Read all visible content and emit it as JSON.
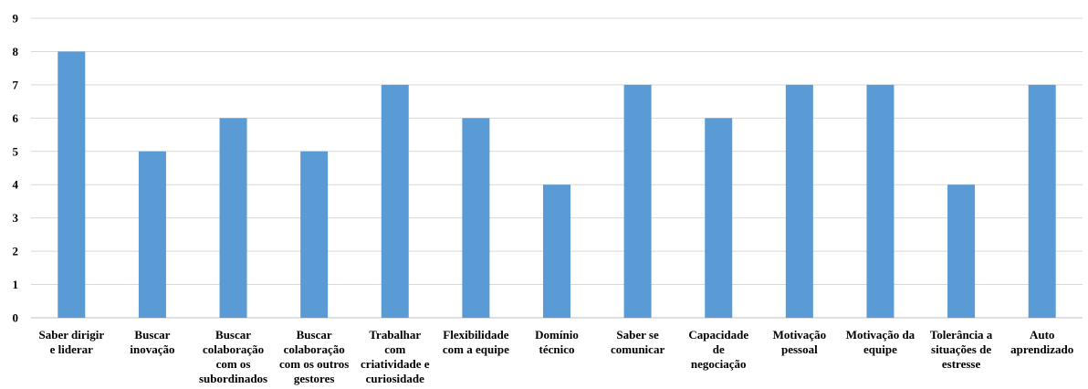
{
  "chart_data": {
    "type": "bar",
    "title": "",
    "xlabel": "",
    "ylabel": "",
    "ylim": [
      0,
      9
    ],
    "yticks": [
      0,
      1,
      2,
      3,
      4,
      5,
      6,
      7,
      8,
      9
    ],
    "grid": true,
    "categories": [
      "Saber dirigir e liderar",
      "Buscar inovação",
      "Buscar colaboração com os subordinados",
      "Buscar colaboração com os outros gestores",
      "Trabalhar com criatividade e curiosidade",
      "Flexibilidade com a equipe",
      "Domínio técnico",
      "Saber se comunicar",
      "Capacidade de negociação",
      "Motivação pessoal",
      "Motivação da equipe",
      "Tolerância a situações de estresse",
      "Auto aprendizado"
    ],
    "category_lines": [
      [
        "Saber dirigir",
        "e liderar"
      ],
      [
        "Buscar",
        "inovação"
      ],
      [
        "Buscar",
        "colaboração",
        "com os",
        "subordinados"
      ],
      [
        "Buscar",
        "colaboração",
        "com os outros",
        "gestores"
      ],
      [
        "Trabalhar",
        "com",
        "criatividade e",
        "curiosidade"
      ],
      [
        "Flexibilidade",
        "com a equipe"
      ],
      [
        "Domínio",
        "técnico"
      ],
      [
        "Saber se",
        "comunicar"
      ],
      [
        "Capacidade",
        "de",
        "negociação"
      ],
      [
        "Motivação",
        "pessoal"
      ],
      [
        "Motivação da",
        "equipe"
      ],
      [
        "Tolerância a",
        "situações de",
        "estresse"
      ],
      [
        "Auto",
        "aprendizado"
      ]
    ],
    "values": [
      8,
      5,
      6,
      5,
      7,
      6,
      4,
      7,
      6,
      7,
      7,
      4,
      7
    ],
    "colors": {
      "bar": "#5b9bd5",
      "grid": "#d9d9d9",
      "axis": "#bfbfbf",
      "text": "#000000"
    }
  }
}
